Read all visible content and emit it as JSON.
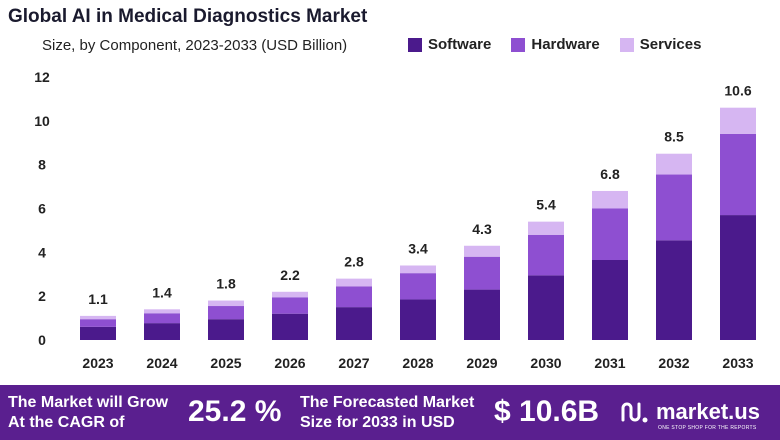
{
  "title": "Global AI in Medical Diagnostics Market",
  "subtitle": "Size, by Component, 2023-2033 (USD Billion)",
  "legend": [
    {
      "name": "Software",
      "color": "#4b1a8c"
    },
    {
      "name": "Hardware",
      "color": "#8e4fd1"
    },
    {
      "name": "Services",
      "color": "#d6b6f2"
    }
  ],
  "chart_data": {
    "type": "bar",
    "stacked": true,
    "title": "Global AI in Medical Diagnostics Market",
    "subtitle": "Size, by Component, 2023-2033 (USD Billion)",
    "categories": [
      "2023",
      "2024",
      "2025",
      "2026",
      "2027",
      "2028",
      "2029",
      "2030",
      "2031",
      "2032",
      "2033"
    ],
    "series": [
      {
        "name": "Software",
        "color": "#4b1a8c",
        "values": [
          0.6,
          0.77,
          0.95,
          1.2,
          1.5,
          1.85,
          2.3,
          2.95,
          3.65,
          4.55,
          5.7
        ]
      },
      {
        "name": "Hardware",
        "color": "#8e4fd1",
        "values": [
          0.35,
          0.45,
          0.6,
          0.75,
          0.95,
          1.2,
          1.5,
          1.85,
          2.35,
          3.0,
          3.7
        ]
      },
      {
        "name": "Services",
        "color": "#d6b6f2",
        "values": [
          0.15,
          0.18,
          0.25,
          0.25,
          0.35,
          0.35,
          0.5,
          0.6,
          0.8,
          0.95,
          1.2
        ]
      }
    ],
    "totals": [
      "1.1",
      "1.4",
      "1.8",
      "2.2",
      "2.8",
      "3.4",
      "4.3",
      "5.4",
      "6.8",
      "8.5",
      "10.6"
    ],
    "yticks": [
      0,
      2,
      4,
      6,
      8,
      10,
      12
    ],
    "ylim": [
      0,
      12
    ],
    "xlabel": "",
    "ylabel": "",
    "grid": false
  },
  "footer": {
    "cagr_text_line1": "The Market will Grow",
    "cagr_text_line2": "At the CAGR of",
    "cagr_value": "25.2 %",
    "forecast_text_line1": "The Forecasted Market",
    "forecast_text_line2": "Size for 2033 in USD",
    "forecast_value": "$ 10.6B",
    "brand_name": "market.us",
    "brand_tagline": "ONE STOP SHOP FOR THE REPORTS"
  }
}
